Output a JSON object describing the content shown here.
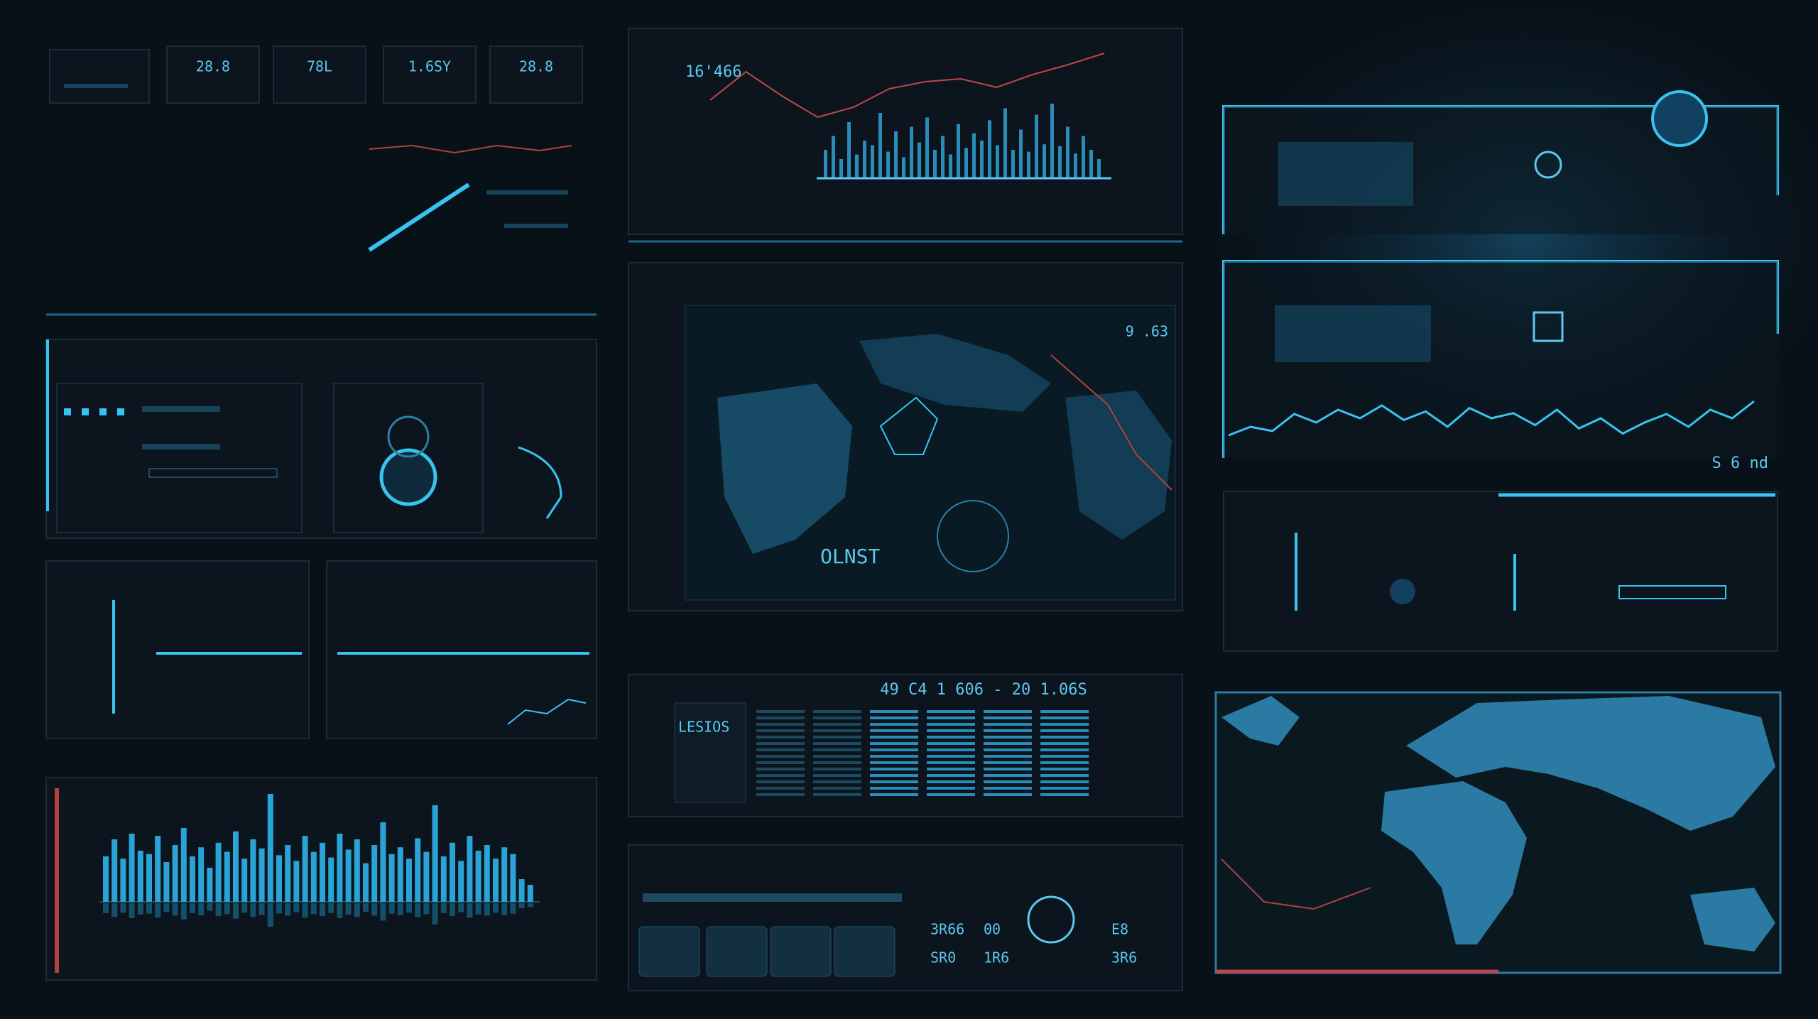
{
  "stats": [
    "28.8",
    "78L",
    "1.6SY",
    "28.8"
  ],
  "top_chart": {
    "readout": "16'466",
    "line": [
      57,
      77,
      60,
      45,
      52,
      65,
      70,
      72,
      66,
      75,
      82,
      90
    ],
    "bars": [
      30,
      45,
      20,
      60,
      25,
      40,
      35,
      70,
      28,
      50,
      22,
      55,
      38,
      65,
      30,
      45,
      25,
      58,
      32,
      48,
      40,
      62,
      35,
      75,
      30,
      52,
      28,
      68,
      36,
      80,
      34,
      55,
      26,
      45,
      30,
      20
    ]
  },
  "map_panel": {
    "readout": "9 .63",
    "label": "OLNST"
  },
  "table_panel": {
    "title": "LESIOS",
    "headline": "49 C4 1 606 - 20 1.06S"
  },
  "status_panel": {
    "readout": "S 6 nd",
    "wave": [
      10,
      20,
      15,
      35,
      25,
      40,
      30,
      45,
      28,
      38,
      20,
      42,
      30,
      36,
      22,
      40,
      18,
      30,
      12,
      25,
      35,
      20,
      40,
      30,
      50
    ]
  },
  "bottom_panel": {
    "codes": [
      "3R66",
      "00",
      "SR0",
      "1R6",
      "3R6",
      "E8"
    ]
  },
  "bottom_chart": {
    "bars": [
      40,
      55,
      38,
      60,
      45,
      42,
      58,
      35,
      50,
      65,
      40,
      48,
      30,
      52,
      44,
      62,
      38,
      55,
      47,
      95,
      41,
      50,
      36,
      58,
      44,
      52,
      39,
      60,
      46,
      55,
      34,
      50,
      70,
      42,
      48,
      38,
      56,
      44,
      85,
      40,
      52,
      36,
      58,
      45,
      50,
      38,
      48,
      42,
      20,
      15
    ]
  }
}
